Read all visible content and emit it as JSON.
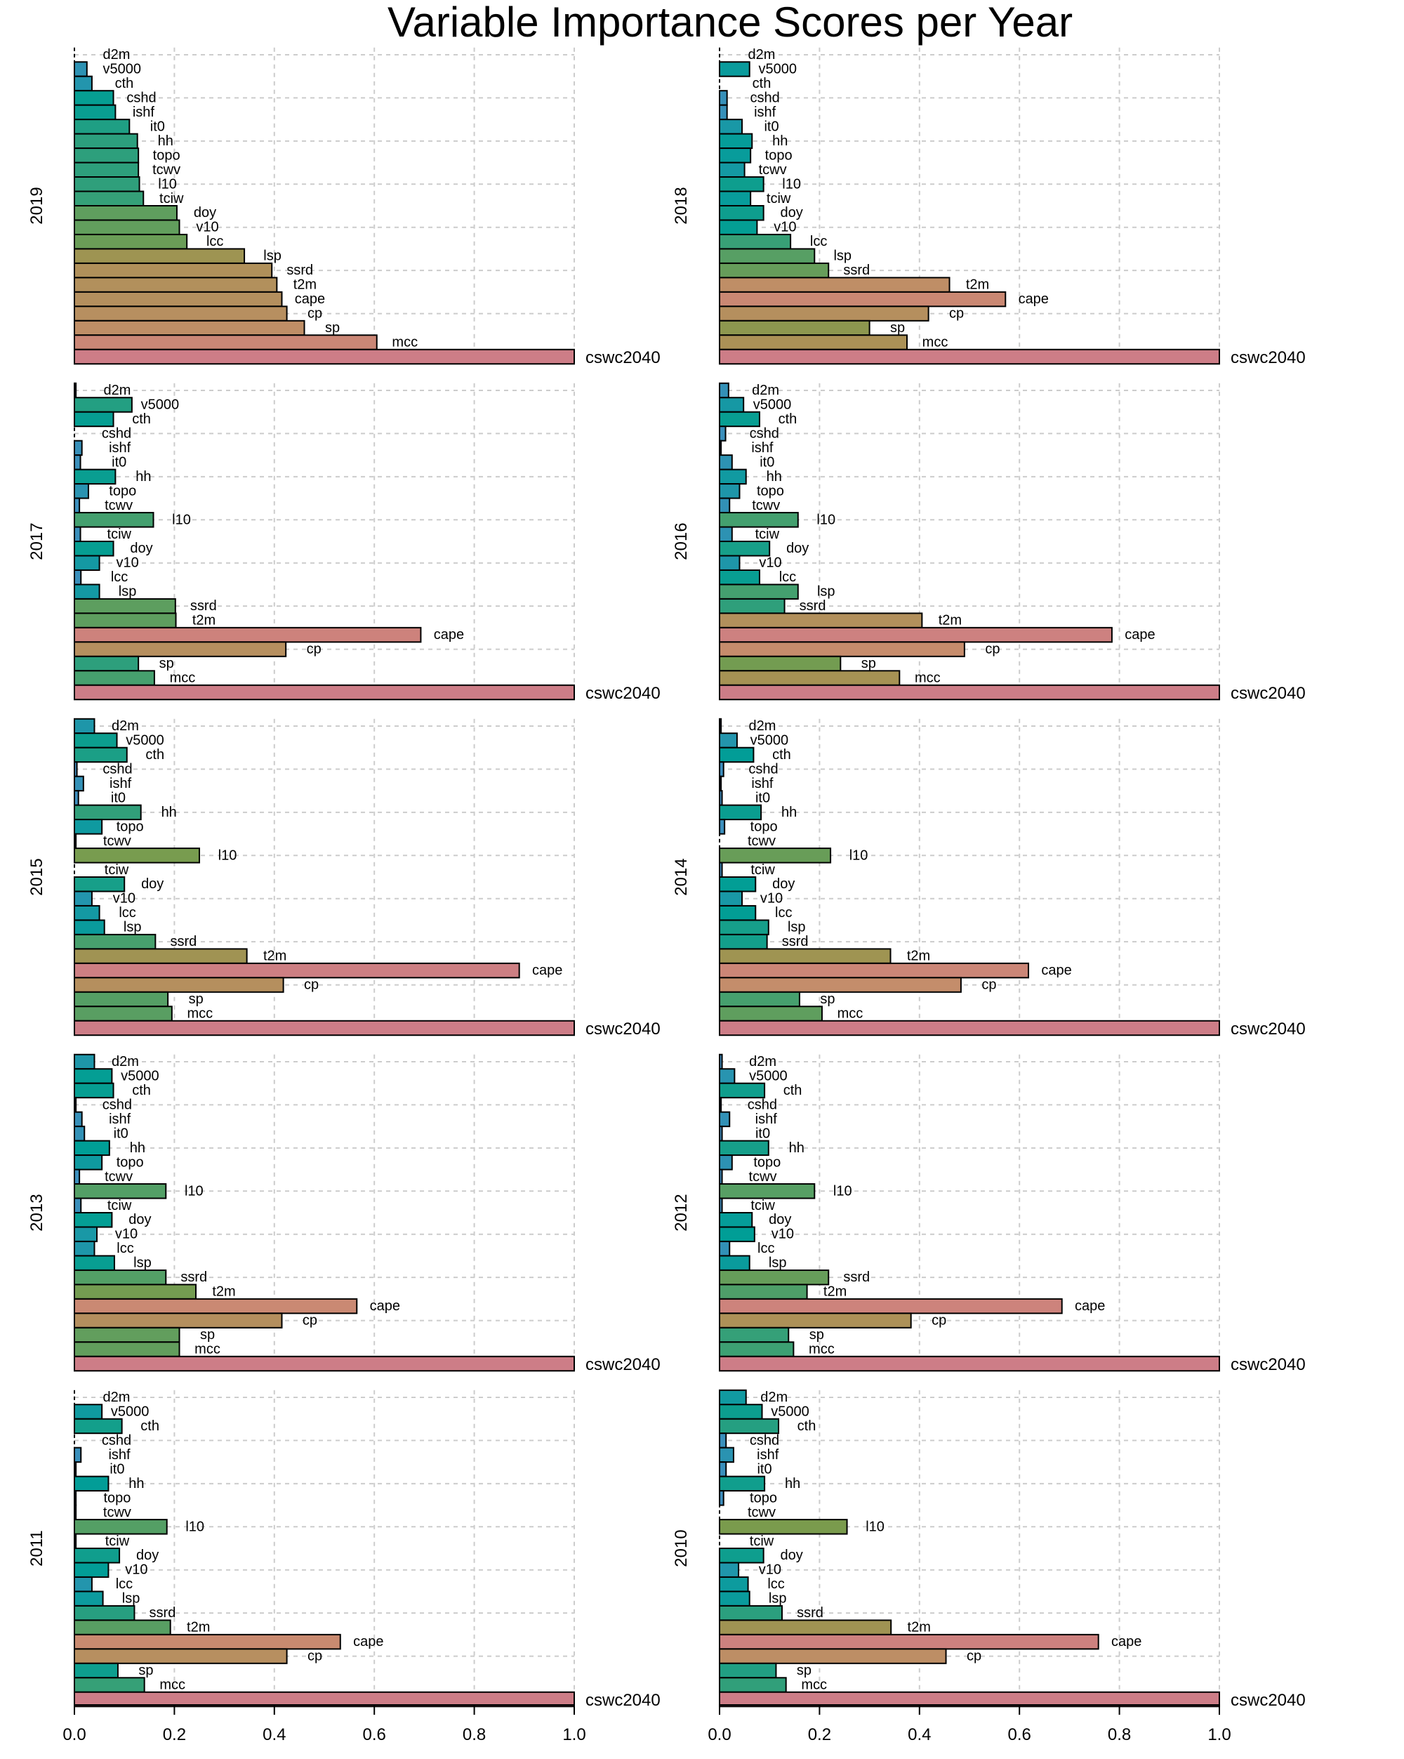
{
  "chart_data": {
    "type": "bar",
    "title": "Variable Importance Scores per Year",
    "xlim": [
      0,
      1.0
    ],
    "x_ticks": [
      "0.0",
      "0.2",
      "0.4",
      "0.6",
      "0.8",
      "1.0"
    ],
    "grid": true,
    "categories": [
      "d2m",
      "v5000",
      "cth",
      "cshd",
      "ishf",
      "it0",
      "hh",
      "topo",
      "tcwv",
      "l10",
      "tciw",
      "doy",
      "v10",
      "lcc",
      "lsp",
      "ssrd",
      "t2m",
      "cape",
      "cp",
      "sp",
      "mcc",
      "cswc2040"
    ],
    "panels": [
      {
        "year": "2019",
        "values": {
          "d2m": 0.0,
          "v5000": 0.025,
          "cth": 0.035,
          "cshd": 0.078,
          "ishf": 0.082,
          "it0": 0.11,
          "hh": 0.126,
          "topo": 0.128,
          "tcwv": 0.128,
          "l10": 0.13,
          "tciw": 0.138,
          "doy": 0.205,
          "v10": 0.21,
          "lcc": 0.225,
          "lsp": 0.34,
          "ssrd": 0.395,
          "t2m": 0.405,
          "cape": 0.415,
          "cp": 0.425,
          "sp": 0.46,
          "mcc": 0.605,
          "cswc2040": 1.0
        }
      },
      {
        "year": "2018",
        "values": {
          "d2m": 0.0,
          "v5000": 0.06,
          "cth": 0.0,
          "cshd": 0.015,
          "ishf": 0.015,
          "it0": 0.045,
          "hh": 0.065,
          "topo": 0.062,
          "tcwv": 0.05,
          "l10": 0.088,
          "tciw": 0.062,
          "doy": 0.088,
          "v10": 0.075,
          "lcc": 0.142,
          "lsp": 0.19,
          "ssrd": 0.218,
          "t2m": 0.46,
          "cape": 0.572,
          "cp": 0.418,
          "sp": 0.3,
          "mcc": 0.375,
          "cswc2040": 1.0
        }
      },
      {
        "year": "2017",
        "values": {
          "d2m": 0.003,
          "v5000": 0.115,
          "cth": 0.078,
          "cshd": 0.0,
          "ishf": 0.015,
          "it0": 0.012,
          "hh": 0.082,
          "topo": 0.028,
          "tcwv": 0.01,
          "l10": 0.158,
          "tciw": 0.012,
          "doy": 0.078,
          "v10": 0.05,
          "lcc": 0.013,
          "lsp": 0.05,
          "ssrd": 0.202,
          "t2m": 0.203,
          "cape": 0.693,
          "cp": 0.423,
          "sp": 0.128,
          "mcc": 0.16,
          "cswc2040": 1.0
        }
      },
      {
        "year": "2016",
        "values": {
          "d2m": 0.018,
          "v5000": 0.048,
          "cth": 0.08,
          "cshd": 0.012,
          "ishf": 0.003,
          "it0": 0.025,
          "hh": 0.053,
          "topo": 0.04,
          "tcwv": 0.02,
          "l10": 0.157,
          "tciw": 0.025,
          "doy": 0.1,
          "v10": 0.04,
          "lcc": 0.08,
          "lsp": 0.157,
          "ssrd": 0.13,
          "t2m": 0.405,
          "cape": 0.785,
          "cp": 0.49,
          "sp": 0.242,
          "mcc": 0.36,
          "cswc2040": 1.0
        }
      },
      {
        "year": "2015",
        "values": {
          "d2m": 0.04,
          "v5000": 0.085,
          "cth": 0.105,
          "cshd": 0.005,
          "ishf": 0.018,
          "it0": 0.008,
          "hh": 0.133,
          "topo": 0.055,
          "tcwv": 0.003,
          "l10": 0.25,
          "tciw": 0.0,
          "doy": 0.1,
          "v10": 0.035,
          "lcc": 0.05,
          "lsp": 0.06,
          "ssrd": 0.162,
          "t2m": 0.345,
          "cape": 0.89,
          "cp": 0.418,
          "sp": 0.187,
          "mcc": 0.195,
          "cswc2040": 1.0
        }
      },
      {
        "year": "2014",
        "values": {
          "d2m": 0.003,
          "v5000": 0.035,
          "cth": 0.068,
          "cshd": 0.008,
          "ishf": 0.003,
          "it0": 0.005,
          "hh": 0.083,
          "topo": 0.01,
          "tcwv": 0.0,
          "l10": 0.222,
          "tciw": 0.005,
          "doy": 0.072,
          "v10": 0.045,
          "lcc": 0.072,
          "lsp": 0.098,
          "ssrd": 0.095,
          "t2m": 0.342,
          "cape": 0.618,
          "cp": 0.483,
          "sp": 0.16,
          "mcc": 0.205,
          "cswc2040": 1.0
        }
      },
      {
        "year": "2013",
        "values": {
          "d2m": 0.04,
          "v5000": 0.075,
          "cth": 0.078,
          "cshd": 0.003,
          "ishf": 0.015,
          "it0": 0.02,
          "hh": 0.07,
          "topo": 0.055,
          "tcwv": 0.01,
          "l10": 0.183,
          "tciw": 0.013,
          "doy": 0.075,
          "v10": 0.045,
          "lcc": 0.04,
          "lsp": 0.08,
          "ssrd": 0.183,
          "t2m": 0.243,
          "cape": 0.565,
          "cp": 0.415,
          "sp": 0.21,
          "mcc": 0.21,
          "cswc2040": 1.0
        }
      },
      {
        "year": "2012",
        "values": {
          "d2m": 0.005,
          "v5000": 0.03,
          "cth": 0.09,
          "cshd": 0.003,
          "ishf": 0.02,
          "it0": 0.005,
          "hh": 0.098,
          "topo": 0.025,
          "tcwv": 0.005,
          "l10": 0.19,
          "tciw": 0.005,
          "doy": 0.065,
          "v10": 0.07,
          "lcc": 0.02,
          "lsp": 0.06,
          "ssrd": 0.218,
          "t2m": 0.175,
          "cape": 0.685,
          "cp": 0.383,
          "sp": 0.138,
          "mcc": 0.148,
          "cswc2040": 1.0
        }
      },
      {
        "year": "2011",
        "values": {
          "d2m": 0.0,
          "v5000": 0.055,
          "cth": 0.095,
          "cshd": 0.0,
          "ishf": 0.013,
          "it0": 0.003,
          "hh": 0.068,
          "topo": 0.003,
          "tcwv": 0.003,
          "l10": 0.185,
          "tciw": 0.003,
          "doy": 0.09,
          "v10": 0.068,
          "lcc": 0.035,
          "lsp": 0.057,
          "ssrd": 0.12,
          "t2m": 0.192,
          "cape": 0.532,
          "cp": 0.425,
          "sp": 0.087,
          "mcc": 0.14,
          "cswc2040": 1.0
        }
      },
      {
        "year": "2010",
        "values": {
          "d2m": 0.053,
          "v5000": 0.085,
          "cth": 0.118,
          "cshd": 0.013,
          "ishf": 0.028,
          "it0": 0.013,
          "hh": 0.09,
          "topo": 0.008,
          "tcwv": 0.0,
          "l10": 0.255,
          "tciw": 0.0,
          "doy": 0.088,
          "v10": 0.038,
          "lcc": 0.057,
          "lsp": 0.06,
          "ssrd": 0.125,
          "t2m": 0.343,
          "cape": 0.758,
          "cp": 0.453,
          "sp": 0.113,
          "mcc": 0.133,
          "cswc2040": 1.0
        }
      }
    ]
  }
}
